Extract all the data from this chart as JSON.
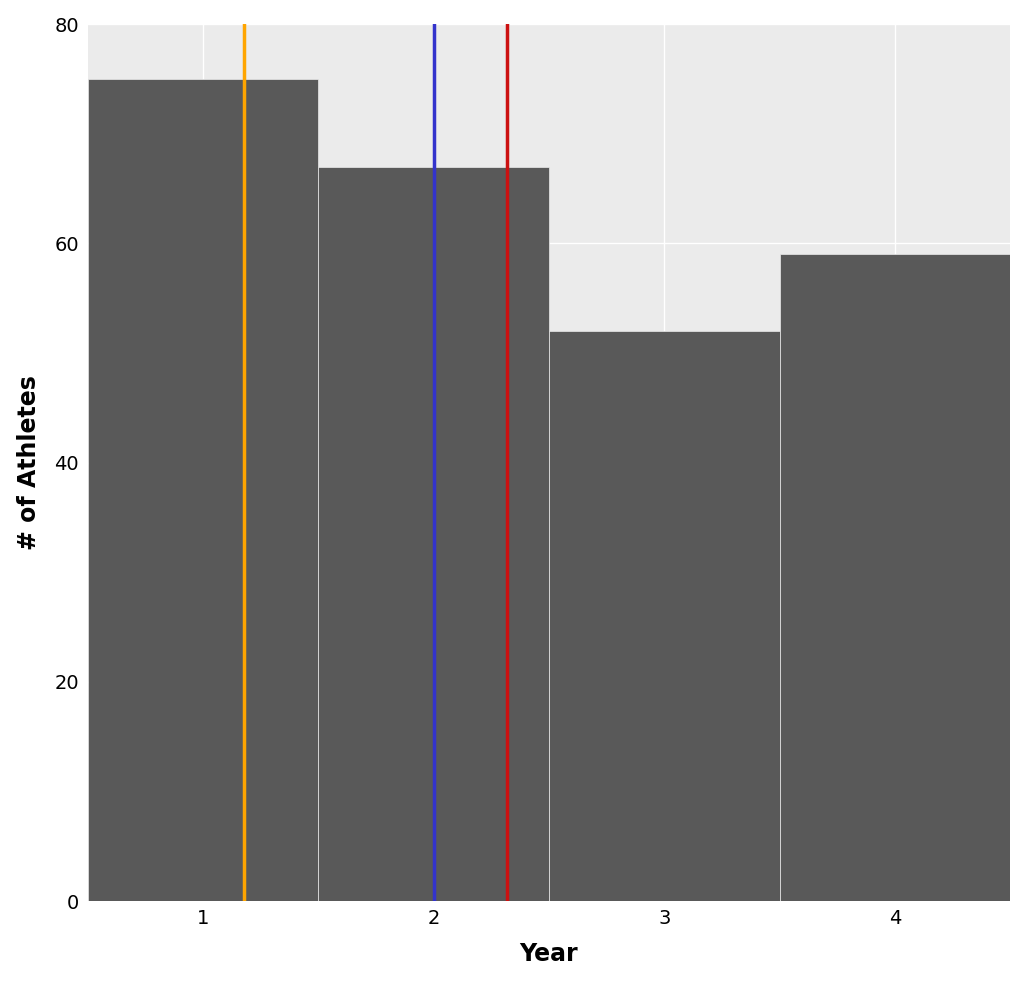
{
  "categories": [
    1,
    2,
    3,
    4
  ],
  "values": [
    75,
    67,
    52,
    59
  ],
  "bar_color": "#595959",
  "bar_width": 1.0,
  "mode_x": 1.18,
  "median_x": 2.0,
  "mean_x": 2.32,
  "mode_color": "#FFA500",
  "median_color": "#3333CC",
  "mean_color": "#CC1111",
  "line_width": 2.5,
  "xlabel": "Year",
  "ylabel": "# of Athletes",
  "xlabel_fontsize": 17,
  "ylabel_fontsize": 17,
  "tick_fontsize": 14,
  "background_color": "#FFFFFF",
  "panel_color": "#EBEBEB",
  "grid_color": "#FFFFFF",
  "ylim": [
    0,
    80
  ],
  "yticks": [
    0,
    20,
    40,
    60,
    80
  ],
  "xlim": [
    0.5,
    4.5
  ]
}
